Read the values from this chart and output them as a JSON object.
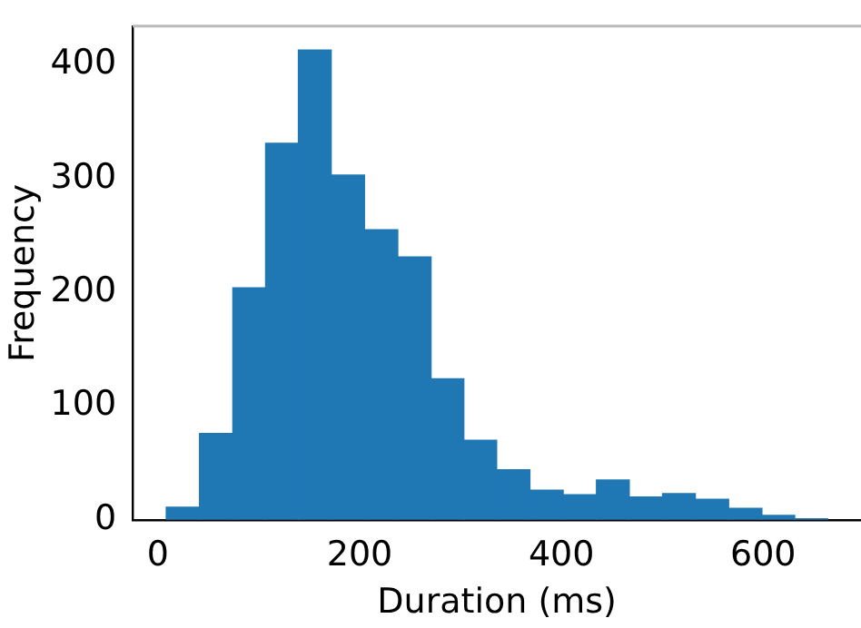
{
  "chart_data": {
    "type": "histogram",
    "xlabel": "Duration (ms)",
    "ylabel": "Frequency",
    "bins": [
      8,
      41,
      74,
      107,
      139,
      172,
      205,
      238,
      271,
      303,
      336,
      369,
      402,
      435,
      467,
      500,
      533,
      566,
      599,
      631,
      664
    ],
    "values": [
      11,
      76,
      204,
      331,
      413,
      303,
      255,
      231,
      124,
      70,
      44,
      26,
      22,
      35,
      20,
      23,
      18,
      10,
      4,
      1
    ],
    "color": "#1f77b4",
    "xlim": [
      -25,
      697
    ],
    "xticks": [
      0,
      200,
      400,
      600
    ],
    "ylim": [
      0,
      434
    ],
    "yticks": [
      0,
      100,
      200,
      300,
      400
    ],
    "grid": false,
    "legend": false
  }
}
